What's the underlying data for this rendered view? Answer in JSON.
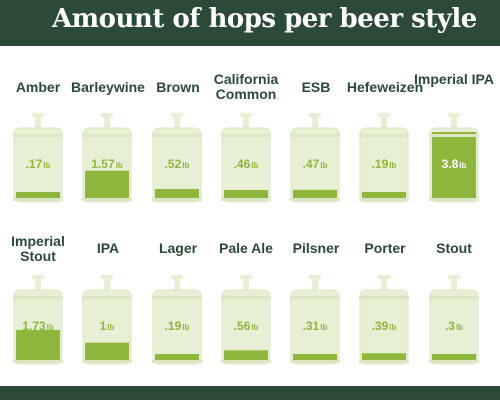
{
  "title": "Amount of hops per beer style",
  "colors": {
    "header": "#2b4a37",
    "keg_body": "#e7efd5",
    "keg_outline": "#dbe7c2",
    "fill": "#8fb63c",
    "label": "#2b4a37"
  },
  "icon": "keg-icon",
  "chart_data": {
    "type": "bar",
    "title": "Amount of hops per beer style",
    "unit": "lb",
    "ylim": [
      0,
      3.8
    ],
    "categories": [
      "Amber",
      "Barleywine",
      "Brown",
      "California Common",
      "ESB",
      "Hefeweizen",
      "Imperial IPA",
      "Imperial Stout",
      "IPA",
      "Lager",
      "Pale Ale",
      "Pilsner",
      "Porter",
      "Stout"
    ],
    "values": [
      0.17,
      1.57,
      0.52,
      0.46,
      0.47,
      0.19,
      3.8,
      1.73,
      1,
      0.19,
      0.56,
      0.31,
      0.39,
      0.3
    ],
    "value_labels": [
      ".17",
      "1.57",
      ".52",
      ".46",
      ".47",
      ".19",
      "3.8",
      "1.73",
      "1",
      ".19",
      ".56",
      ".31",
      ".39",
      ".3"
    ]
  }
}
